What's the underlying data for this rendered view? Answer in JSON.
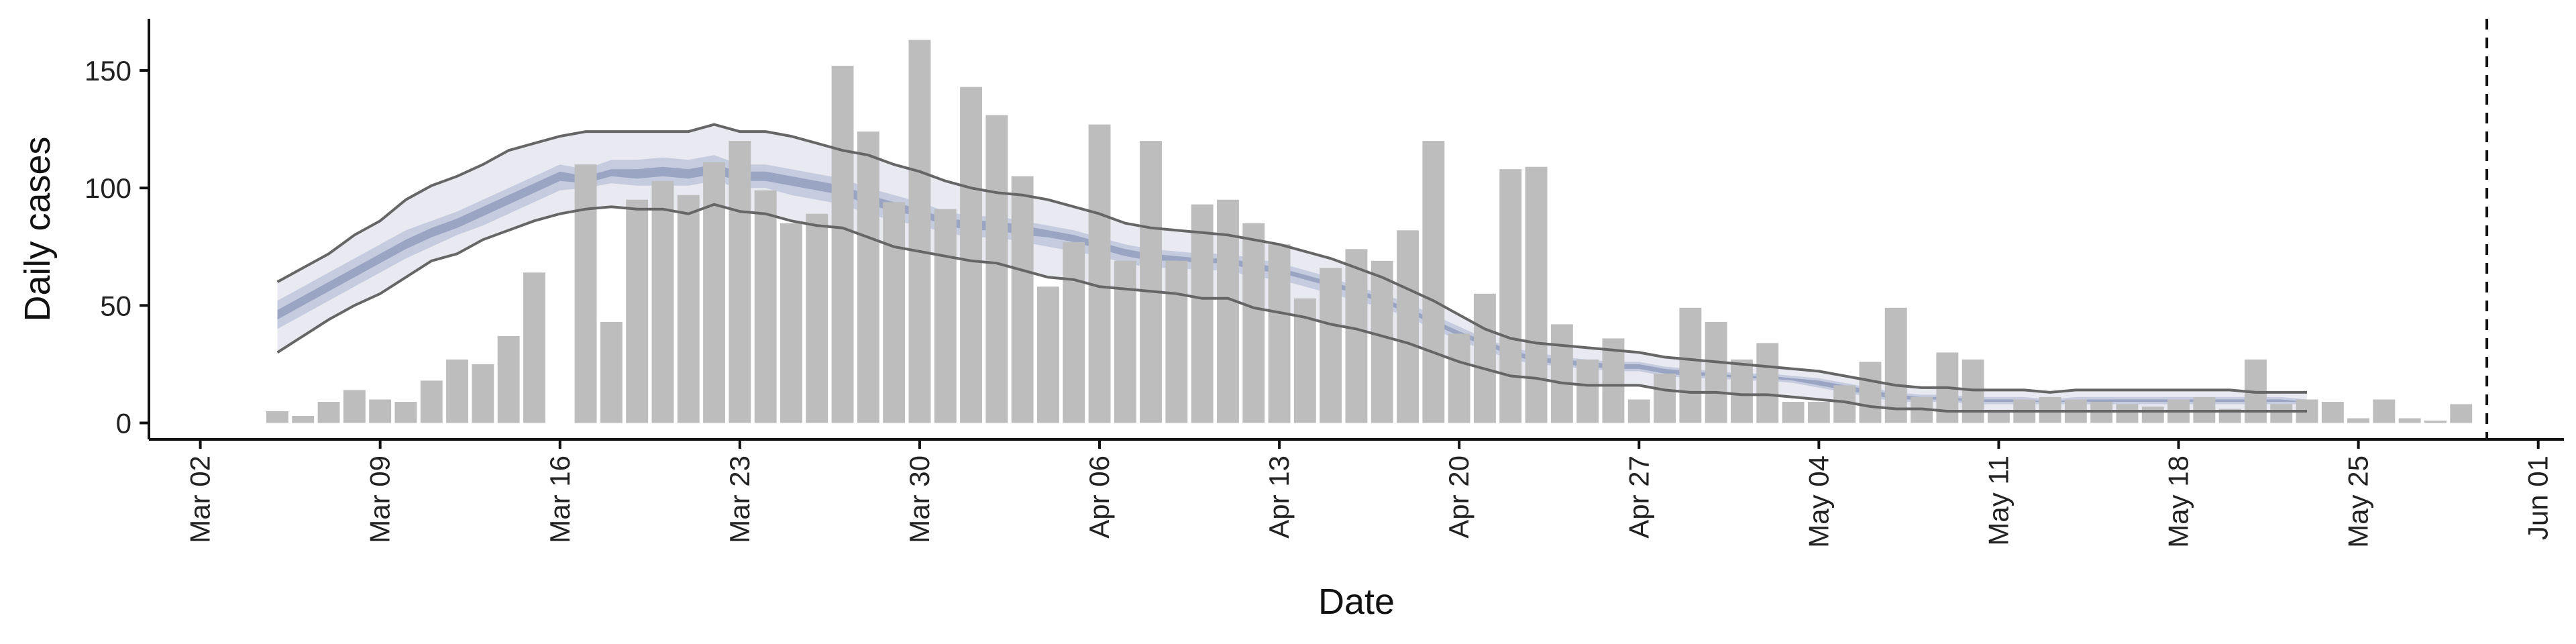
{
  "chart_data": {
    "type": "bar",
    "xlabel": "Date",
    "ylabel": "Daily cases",
    "ylim": [
      -7,
      172
    ],
    "xlim": [
      "2020-02-29",
      "2020-06-02"
    ],
    "y_ticks": [
      0,
      50,
      100,
      150
    ],
    "x_ticks": [
      {
        "date": "2020-03-02",
        "label": "Mar 02"
      },
      {
        "date": "2020-03-09",
        "label": "Mar 09"
      },
      {
        "date": "2020-03-16",
        "label": "Mar 16"
      },
      {
        "date": "2020-03-23",
        "label": "Mar 23"
      },
      {
        "date": "2020-03-30",
        "label": "Mar 30"
      },
      {
        "date": "2020-04-06",
        "label": "Apr 06"
      },
      {
        "date": "2020-04-13",
        "label": "Apr 13"
      },
      {
        "date": "2020-04-20",
        "label": "Apr 20"
      },
      {
        "date": "2020-04-27",
        "label": "Apr 27"
      },
      {
        "date": "2020-05-04",
        "label": "May 04"
      },
      {
        "date": "2020-05-11",
        "label": "May 11"
      },
      {
        "date": "2020-05-18",
        "label": "May 18"
      },
      {
        "date": "2020-05-25",
        "label": "May 25"
      },
      {
        "date": "2020-06-01",
        "label": "Jun 01"
      }
    ],
    "bars": {
      "start_date": "2020-03-05",
      "color": "#bdbdbd",
      "values": [
        5,
        3,
        9,
        14,
        10,
        9,
        18,
        27,
        25,
        37,
        64,
        0,
        110,
        43,
        95,
        103,
        97,
        111,
        120,
        99,
        85,
        89,
        152,
        124,
        94,
        163,
        91,
        143,
        131,
        105,
        58,
        77,
        127,
        69,
        120,
        69,
        93,
        95,
        85,
        76,
        53,
        66,
        74,
        69,
        82,
        120,
        38,
        55,
        108,
        109,
        42,
        27,
        36,
        10,
        21,
        49,
        43,
        27,
        34,
        9,
        9,
        16,
        26,
        49,
        11,
        30,
        27,
        5,
        10,
        11,
        10,
        9,
        8,
        7,
        10,
        11,
        6,
        27,
        8,
        10,
        9,
        2,
        10,
        2,
        1,
        8
      ]
    },
    "bands": {
      "start_date": "2020-03-05",
      "outer_color": "#e8e9f1",
      "mid_color": "#c5ccdf",
      "inner_color": "#9aa5c4",
      "line_color": "#666666",
      "upper_90": [
        60,
        66,
        72,
        80,
        86,
        95,
        101,
        105,
        110,
        116,
        119,
        122,
        124,
        124,
        124,
        124,
        124,
        127,
        124,
        124,
        122,
        119,
        116,
        114,
        110,
        107,
        103,
        100,
        98,
        97,
        95,
        92,
        89,
        85,
        83,
        82,
        81,
        80,
        78,
        76,
        73,
        70,
        66,
        62,
        57,
        52,
        46,
        40,
        36,
        34,
        33,
        32,
        31,
        30,
        28,
        27,
        26,
        25,
        24,
        23,
        22,
        20,
        18,
        16,
        15,
        15,
        14,
        14,
        14,
        13,
        14,
        14,
        14,
        14,
        14,
        14,
        14,
        13,
        13,
        13
      ],
      "lower_90": [
        30,
        37,
        44,
        50,
        55,
        62,
        69,
        72,
        78,
        82,
        86,
        89,
        91,
        92,
        91,
        91,
        89,
        93,
        90,
        89,
        86,
        84,
        83,
        79,
        75,
        73,
        71,
        69,
        68,
        65,
        62,
        61,
        58,
        57,
        56,
        55,
        53,
        53,
        49,
        47,
        45,
        42,
        40,
        37,
        34,
        30,
        26,
        23,
        20,
        19,
        17,
        16,
        16,
        16,
        14,
        13,
        13,
        12,
        12,
        11,
        10,
        9,
        7,
        6,
        6,
        5,
        5,
        5,
        5,
        5,
        5,
        5,
        5,
        5,
        5,
        5,
        5,
        5,
        5,
        5
      ],
      "upper_50": [
        52,
        58,
        64,
        70,
        76,
        82,
        86,
        90,
        95,
        100,
        105,
        110,
        108,
        112,
        112,
        113,
        112,
        114,
        110,
        110,
        108,
        106,
        104,
        100,
        97,
        94,
        90,
        88,
        88,
        86,
        84,
        82,
        79,
        76,
        74,
        73,
        72,
        72,
        70,
        68,
        65,
        62,
        58,
        55,
        51,
        46,
        41,
        36,
        32,
        30,
        28,
        27,
        26,
        26,
        24,
        23,
        22,
        21,
        21,
        20,
        19,
        17,
        15,
        13,
        12,
        12,
        11,
        11,
        11,
        10,
        11,
        11,
        11,
        11,
        11,
        11,
        11,
        11,
        11,
        10
      ],
      "lower_50": [
        40,
        46,
        52,
        58,
        64,
        70,
        75,
        80,
        84,
        89,
        94,
        99,
        100,
        102,
        101,
        101,
        101,
        103,
        100,
        100,
        97,
        95,
        93,
        89,
        86,
        84,
        81,
        79,
        79,
        77,
        75,
        73,
        71,
        68,
        66,
        66,
        65,
        65,
        62,
        61,
        58,
        55,
        52,
        49,
        45,
        40,
        35,
        31,
        27,
        25,
        24,
        23,
        22,
        22,
        20,
        19,
        19,
        18,
        18,
        17,
        15,
        13,
        11,
        9,
        9,
        9,
        8,
        8,
        8,
        8,
        8,
        8,
        8,
        8,
        8,
        8,
        8,
        8,
        8,
        8
      ],
      "upper_25": [
        48,
        54,
        60,
        66,
        72,
        78,
        83,
        87,
        92,
        97,
        102,
        107,
        105,
        108,
        108,
        109,
        108,
        110,
        107,
        107,
        105,
        103,
        101,
        97,
        94,
        91,
        87,
        86,
        86,
        84,
        82,
        80,
        77,
        74,
        72,
        71,
        70,
        70,
        68,
        66,
        63,
        60,
        57,
        53,
        49,
        44,
        39,
        35,
        31,
        28,
        27,
        26,
        25,
        25,
        23,
        22,
        21,
        20,
        20,
        19,
        18,
        16,
        14,
        12,
        11,
        11,
        10,
        10,
        10,
        9,
        10,
        10,
        10,
        10,
        10,
        10,
        10,
        10,
        10,
        9
      ],
      "lower_25": [
        44,
        50,
        56,
        62,
        68,
        74,
        79,
        83,
        88,
        93,
        98,
        103,
        102,
        105,
        104,
        105,
        104,
        106,
        103,
        103,
        101,
        99,
        97,
        93,
        90,
        88,
        84,
        82,
        82,
        80,
        79,
        77,
        74,
        71,
        69,
        69,
        68,
        68,
        65,
        64,
        61,
        58,
        55,
        51,
        47,
        42,
        37,
        33,
        29,
        26,
        25,
        24,
        23,
        23,
        21,
        20,
        20,
        19,
        19,
        18,
        16,
        14,
        12,
        10,
        10,
        10,
        9,
        9,
        9,
        9,
        9,
        9,
        9,
        9,
        9,
        9,
        9,
        9,
        9,
        9
      ]
    },
    "vline": {
      "date": "2020-05-30",
      "style": "dashed"
    },
    "grid": false,
    "legend": "none"
  }
}
